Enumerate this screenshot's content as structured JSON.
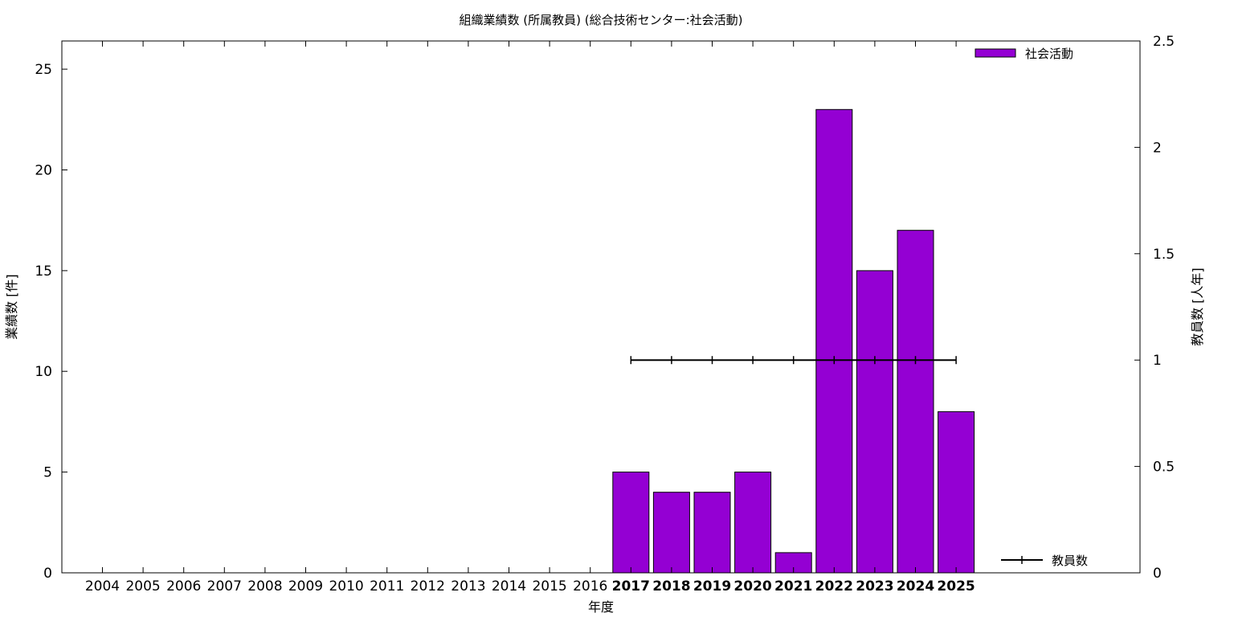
{
  "chart_data": {
    "type": "bar",
    "title": "組織業績数 (所属教員) (総合技術センター:社会活動)",
    "xlabel": "年度",
    "ylabel": "業績数 [件]",
    "y2label": "教員数 [人年]",
    "categories": [
      "2004",
      "2005",
      "2006",
      "2007",
      "2008",
      "2009",
      "2010",
      "2011",
      "2012",
      "2013",
      "2014",
      "2015",
      "2016",
      "2017",
      "2018",
      "2019",
      "2020",
      "2021",
      "2022",
      "2023",
      "2024",
      "2025"
    ],
    "bold_categories": [
      "2017",
      "2018",
      "2019",
      "2020",
      "2021",
      "2022",
      "2023",
      "2024",
      "2025"
    ],
    "ylim": [
      0,
      26.4
    ],
    "yticks": [
      0,
      5,
      10,
      15,
      20,
      25
    ],
    "y2lim": [
      0,
      2.5
    ],
    "y2ticks": [
      0,
      0.5,
      1,
      1.5,
      2,
      2.5
    ],
    "y2tick_labels": [
      "0",
      "0.5",
      "1",
      "1.5",
      "2",
      "2.5"
    ],
    "grid": false,
    "legend_position": "top-right",
    "series": [
      {
        "name": "社会活動",
        "type": "bar",
        "axis": "left",
        "color": "#9400d3",
        "values": [
          0,
          0,
          0,
          0,
          0,
          0,
          0,
          0,
          0,
          0,
          0,
          0,
          0,
          5,
          4,
          4,
          5,
          1,
          23,
          15,
          17,
          8
        ]
      },
      {
        "name": "教員数",
        "type": "line",
        "axis": "right",
        "color": "#000000",
        "values": [
          null,
          null,
          null,
          null,
          null,
          null,
          null,
          null,
          null,
          null,
          null,
          null,
          null,
          1,
          1,
          1,
          1,
          1,
          1,
          1,
          1,
          1
        ]
      }
    ]
  }
}
